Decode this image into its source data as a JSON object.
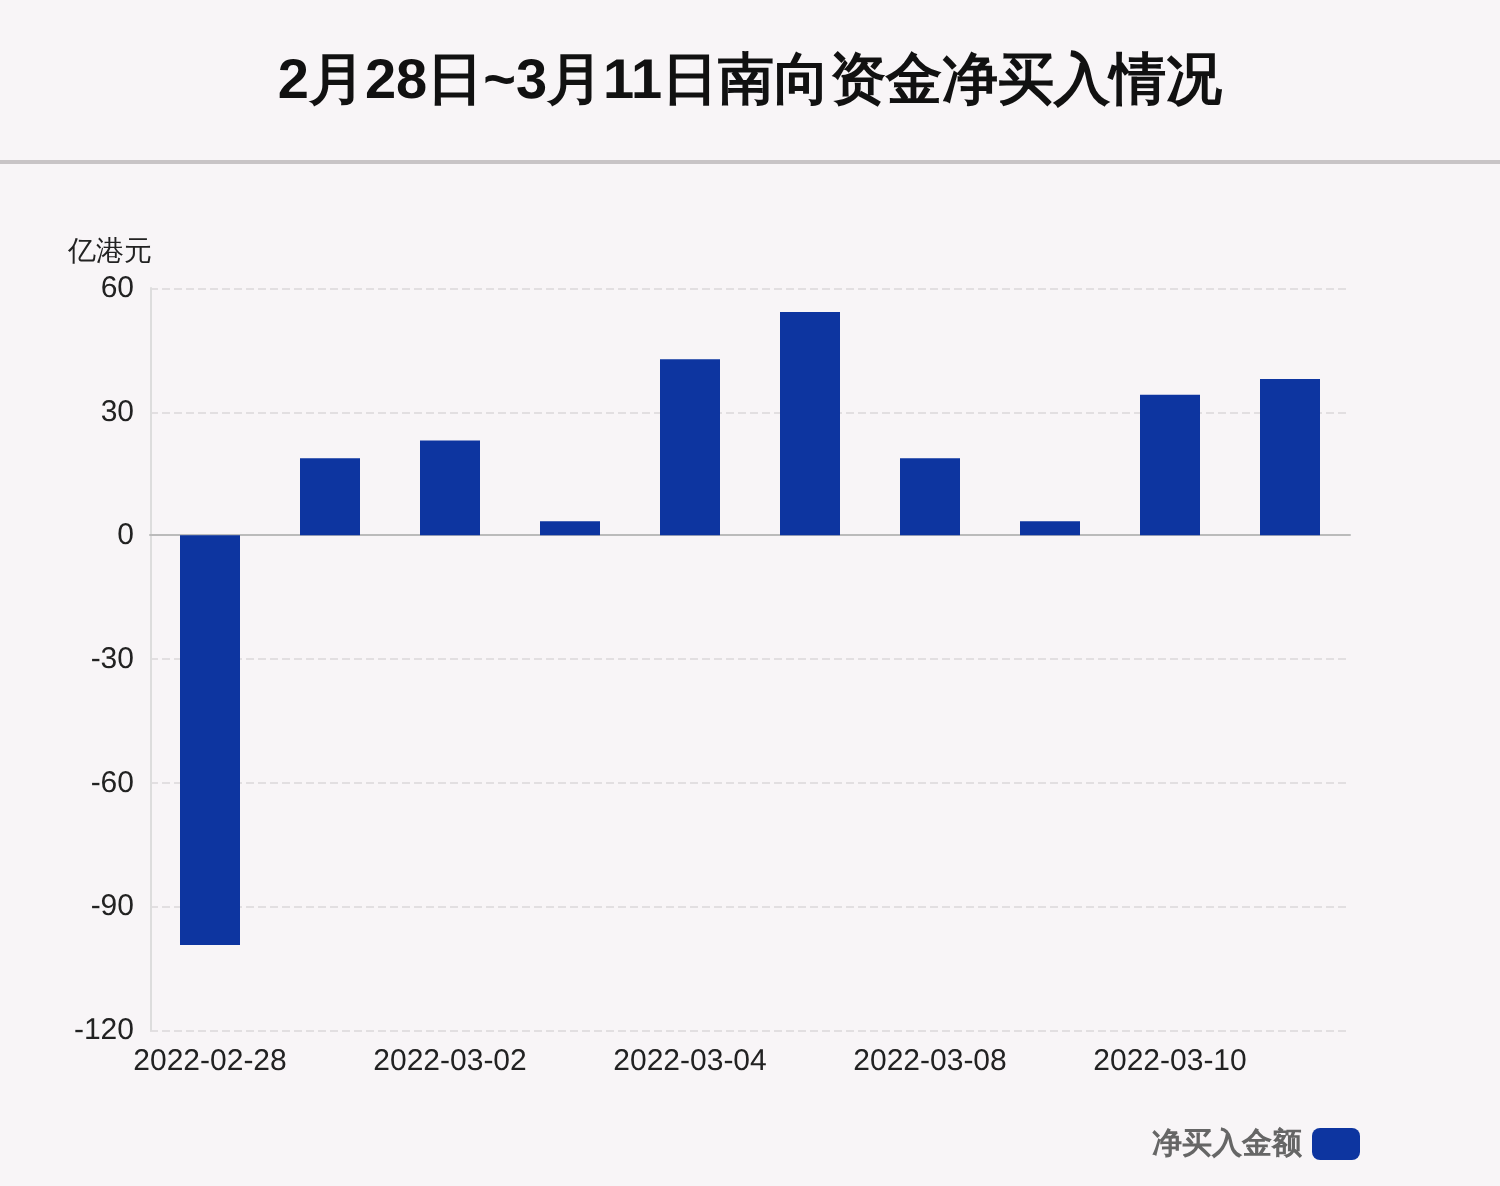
{
  "chart_data": {
    "type": "bar",
    "title": "2月28日~3月11日南向资金净买入情况",
    "ylabel": "亿港元",
    "categories": [
      "2022-02-28",
      null,
      "2022-03-02",
      null,
      "2022-03-04",
      null,
      "2022-03-08",
      null,
      "2022-03-10",
      null
    ],
    "series": [
      {
        "name": "净买入金额",
        "color": "#0d35a0",
        "values": [
          -99.4,
          18.7,
          23.0,
          3.4,
          42.7,
          54.2,
          18.7,
          3.4,
          34.1,
          37.9
        ]
      }
    ],
    "ylim": [
      -120,
      60
    ],
    "yticks": [
      -120,
      -90,
      -60,
      -30,
      0,
      30,
      60
    ],
    "grid": "y",
    "legend": "bottom right"
  }
}
